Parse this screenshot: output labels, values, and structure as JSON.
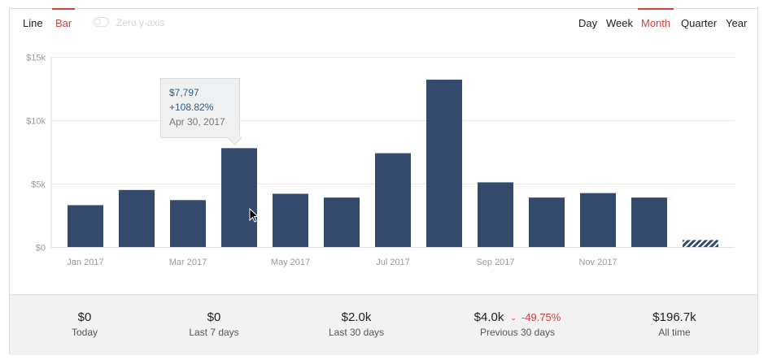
{
  "toolbar": {
    "chart_types": [
      {
        "label": "Line",
        "active": false
      },
      {
        "label": "Bar",
        "active": true
      }
    ],
    "zero_axis_label": "Zero y-axis",
    "periods": [
      {
        "label": "Day",
        "active": false
      },
      {
        "label": "Week",
        "active": false
      },
      {
        "label": "Month",
        "active": true
      },
      {
        "label": "Quarter",
        "active": false
      },
      {
        "label": "Year",
        "active": false
      }
    ]
  },
  "tooltip": {
    "value": "$7,797",
    "change": "+108.82%",
    "date": "Apr 30, 2017"
  },
  "colors": {
    "bar": "#344a6d",
    "accent": "#d0413d",
    "grid": "#e9e9e9",
    "axis_text": "#999999"
  },
  "chart_data": {
    "type": "bar",
    "categories": [
      "Jan 2017",
      "Feb 2017",
      "Mar 2017",
      "Apr 2017",
      "May 2017",
      "Jun 2017",
      "Jul 2017",
      "Aug 2017",
      "Sep 2017",
      "Oct 2017",
      "Nov 2017",
      "Dec 2017",
      "Jan 2018"
    ],
    "values": [
      3300,
      4500,
      3700,
      7797,
      4200,
      3900,
      7400,
      13200,
      5100,
      3900,
      4250,
      3900,
      550
    ],
    "partial_last": true,
    "x_tick_labels": [
      "Jan 2017",
      "",
      "Mar 2017",
      "",
      "May 2017",
      "",
      "Jul 2017",
      "",
      "Sep 2017",
      "",
      "Nov 2017",
      "",
      ""
    ],
    "y_ticks": [
      0,
      5000,
      10000,
      15000
    ],
    "y_tick_labels": [
      "$0",
      "$5k",
      "$10k",
      "$15k"
    ],
    "ylim": [
      0,
      15000
    ],
    "grid": true,
    "title": "",
    "xlabel": "",
    "ylabel": ""
  },
  "stats": [
    {
      "value": "$0",
      "label": "Today"
    },
    {
      "value": "$0",
      "label": "Last 7 days"
    },
    {
      "value": "$2.0k",
      "label": "Last 30 days"
    },
    {
      "value": "$4.0k",
      "label": "Previous 30 days",
      "delta": "-49.75%",
      "delta_icon": "chevron-down-icon"
    },
    {
      "value": "$196.7k",
      "label": "All time"
    }
  ]
}
